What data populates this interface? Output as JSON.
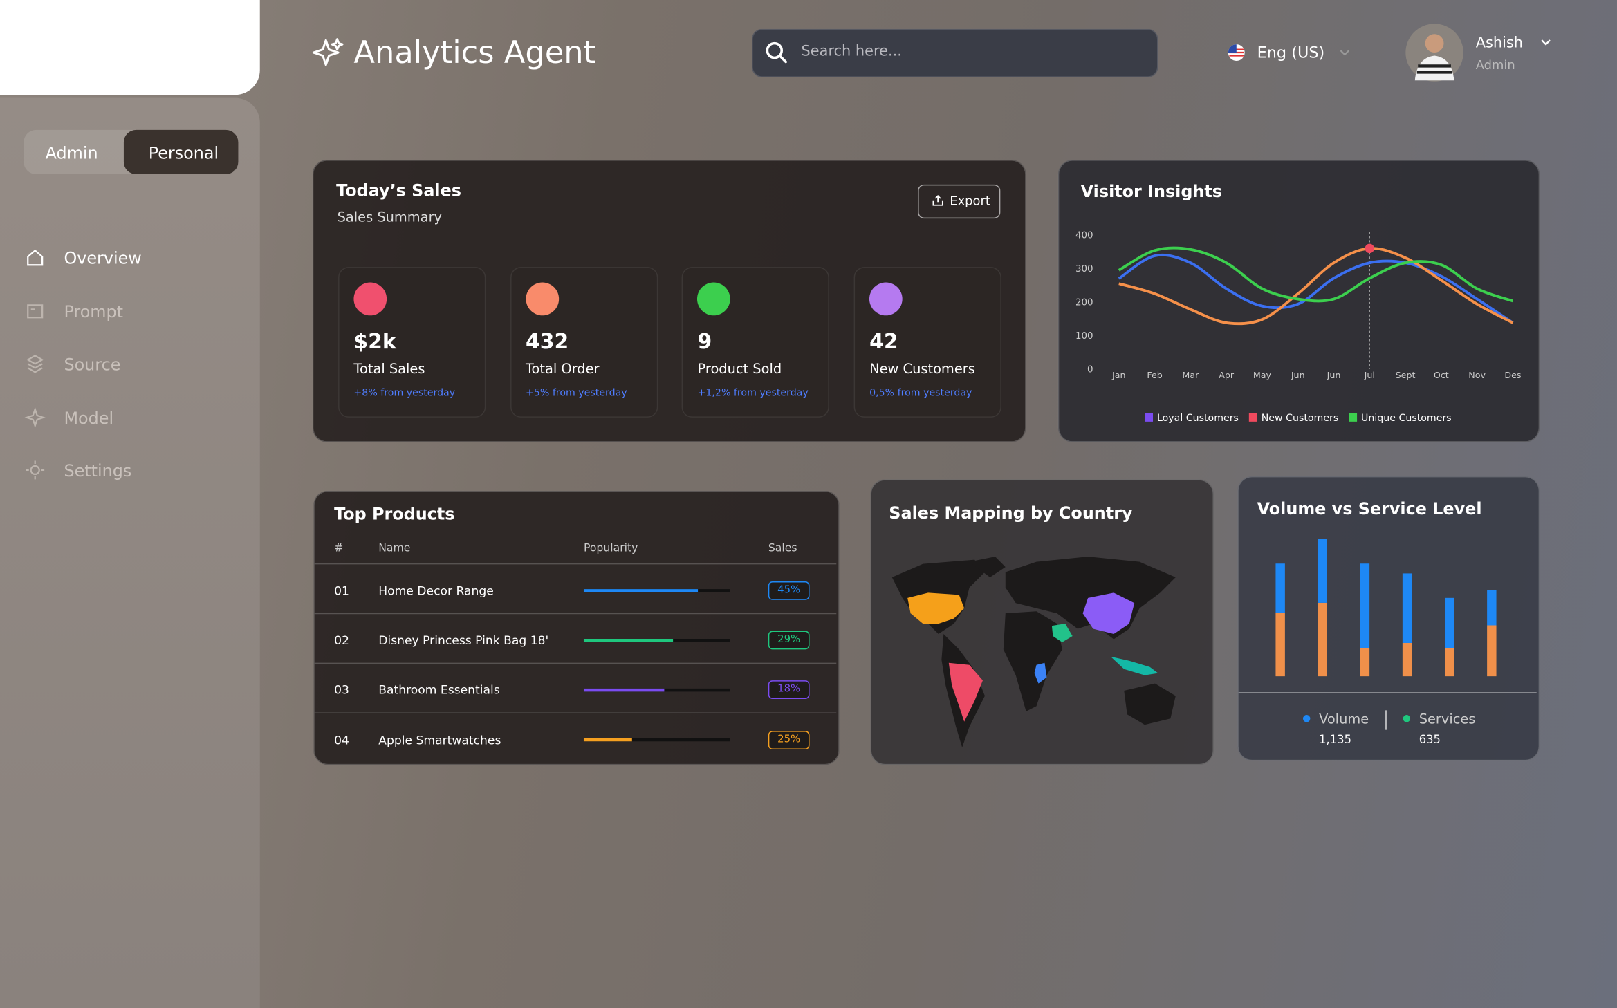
{
  "header": {
    "title": "Analytics Agent",
    "search_placeholder": "Search here...",
    "language": "Eng (US)",
    "user_name": "Ashish",
    "user_role": "Admin"
  },
  "sidebar": {
    "tabs": [
      "Admin",
      "Personal"
    ],
    "menu": [
      "Overview",
      "Prompt",
      "Source",
      "Model",
      "Settings"
    ]
  },
  "sales": {
    "title": "Today’s Sales",
    "subtitle": "Sales Summary",
    "export": "Export",
    "cards": [
      {
        "value": "$2k",
        "label": "Total Sales",
        "change": "+8% from yesterday"
      },
      {
        "value": "432",
        "label": "Total Order",
        "change": "+5% from yesterday"
      },
      {
        "value": "9",
        "label": "Product Sold",
        "change": "+1,2% from yesterday"
      },
      {
        "value": "42",
        "label": "New Customers",
        "change": "0,5% from yesterday"
      }
    ]
  },
  "top_products": {
    "title": "Top Products",
    "columns": [
      "#",
      "Name",
      "Popularity",
      "Sales"
    ],
    "rows": [
      {
        "rank": "01",
        "name": "Home Decor Range",
        "popularity": 78,
        "sales": "45%",
        "color": "#1e88f5"
      },
      {
        "rank": "02",
        "name": "Disney Princess Pink Bag 18'",
        "popularity": 61,
        "sales": "29%",
        "color": "#1fc77e"
      },
      {
        "rank": "03",
        "name": "Bathroom Essentials",
        "popularity": 55,
        "sales": "18%",
        "color": "#7b4cf0"
      },
      {
        "rank": "04",
        "name": "Apple Smartwatches",
        "popularity": 33,
        "sales": "25%",
        "color": "#f5a020"
      }
    ]
  },
  "map": {
    "title": "Sales Mapping by Country"
  },
  "chart_data": [
    {
      "type": "line",
      "title": "Visitor Insights",
      "categories": [
        "Jan",
        "Feb",
        "Mar",
        "Apr",
        "May",
        "Jun",
        "Jun",
        "Jul",
        "Sept",
        "Oct",
        "Nov",
        "Des"
      ],
      "ylim": [
        0,
        400
      ],
      "yticks": [
        0,
        100,
        200,
        300,
        400
      ],
      "series": [
        {
          "name": "Loyal Customers",
          "color": "#3b6ff0",
          "legend_color": "#7b4cf0",
          "values": [
            270,
            338,
            317,
            240,
            188,
            194,
            271,
            317,
            317,
            277,
            209,
            138
          ]
        },
        {
          "name": "New Customers",
          "color": "#f5904a",
          "legend_color": "#f04a5e",
          "values": [
            255,
            225,
            178,
            138,
            148,
            225,
            317,
            360,
            332,
            265,
            194,
            138
          ]
        },
        {
          "name": "Unique Customers",
          "color": "#3ccf4e",
          "legend_color": "#3ccf4e",
          "values": [
            295,
            354,
            357,
            317,
            240,
            209,
            209,
            271,
            317,
            311,
            240,
            203
          ]
        }
      ]
    },
    {
      "type": "bar",
      "stacked": true,
      "title": "Volume vs Service Level",
      "ylim": [
        0,
        140
      ],
      "series": [
        {
          "name": "Services",
          "color": "#f0904a",
          "legend_color": "#1fc77e",
          "values": [
            65,
            75,
            29,
            34,
            29,
            52
          ],
          "total": 635,
          "total_label": "635"
        },
        {
          "name": "Volume",
          "color": "#1e88f5",
          "legend_color": "#1e88f5",
          "values": [
            50,
            65,
            86,
            71,
            51,
            36
          ],
          "total": 1135,
          "total_label": "1,135"
        }
      ]
    }
  ]
}
